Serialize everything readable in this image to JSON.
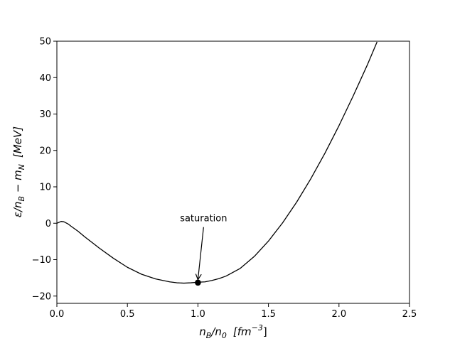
{
  "chart_data": {
    "type": "line",
    "title": "",
    "xlabel": {
      "base": "n",
      "sub1": "B",
      "mid": "/n",
      "sub2": "0",
      "unit": "[fm",
      "sup": "−3",
      "close": "]"
    },
    "ylabel": {
      "base": "ε/n",
      "sub1": "B",
      "mid": " − m",
      "sub2": "N",
      "unit": "[MeV]"
    },
    "xlim": [
      0.0,
      2.5
    ],
    "ylim": [
      -22,
      50
    ],
    "xticks": [
      0.0,
      0.5,
      1.0,
      1.5,
      2.0,
      2.5
    ],
    "xtick_labels": [
      "0.0",
      "0.5",
      "1.0",
      "1.5",
      "2.0",
      "2.5"
    ],
    "yticks": [
      -20,
      -10,
      0,
      10,
      20,
      30,
      40,
      50
    ],
    "ytick_labels": [
      "−20",
      "−10",
      "0",
      "10",
      "20",
      "30",
      "40",
      "50"
    ],
    "grid": false,
    "series": [
      {
        "color": "#000000",
        "x": [
          0.0,
          0.03,
          0.05,
          0.08,
          0.1,
          0.15,
          0.2,
          0.25,
          0.3,
          0.4,
          0.5,
          0.6,
          0.7,
          0.8,
          0.85,
          0.9,
          0.95,
          1.0,
          1.05,
          1.1,
          1.15,
          1.2,
          1.3,
          1.4,
          1.5,
          1.6,
          1.7,
          1.8,
          1.9,
          2.0,
          2.1,
          2.2,
          2.27
        ],
        "y": [
          0.0,
          0.5,
          0.4,
          -0.2,
          -0.8,
          -2.2,
          -3.8,
          -5.3,
          -6.8,
          -9.6,
          -12.1,
          -14.0,
          -15.3,
          -16.1,
          -16.35,
          -16.45,
          -16.35,
          -16.2,
          -16.1,
          -15.7,
          -15.2,
          -14.5,
          -12.4,
          -9.1,
          -4.9,
          0.1,
          5.8,
          12.2,
          19.2,
          26.8,
          34.9,
          43.4,
          49.8
        ]
      }
    ],
    "marker": {
      "x": 1.0,
      "y": -16.3,
      "color": "#000000"
    },
    "annotation": {
      "text": "saturation",
      "text_x": 1.04,
      "text_y": 0.5,
      "arrow_to_x": 1.0,
      "arrow_to_y": -15.5
    }
  }
}
